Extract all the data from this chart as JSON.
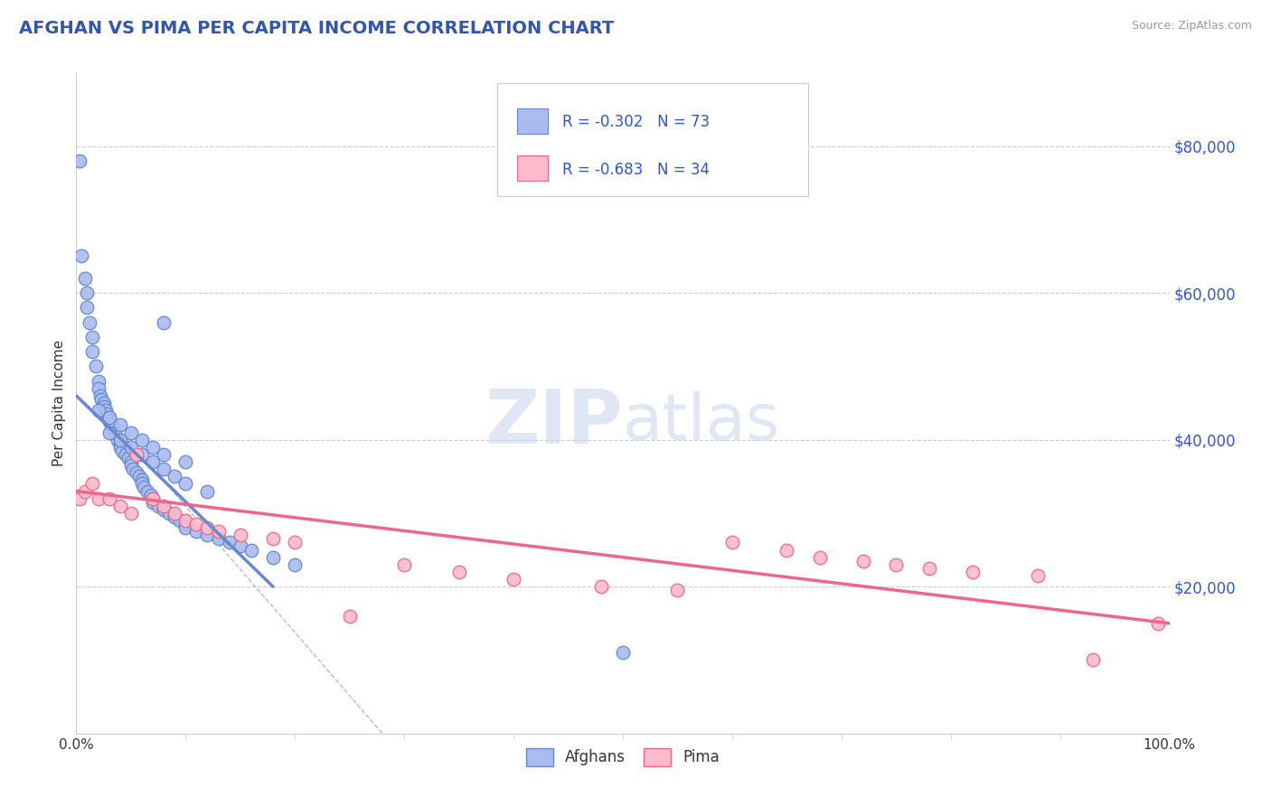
{
  "title": "AFGHAN VS PIMA PER CAPITA INCOME CORRELATION CHART",
  "title_color": "#3355aa",
  "source_text": "Source: ZipAtlas.com",
  "ylabel": "Per Capita Income",
  "xlim": [
    0,
    100
  ],
  "ylim": [
    0,
    90000
  ],
  "yticks": [
    20000,
    40000,
    60000,
    80000
  ],
  "ytick_labels": [
    "$20,000",
    "$40,000",
    "$60,000",
    "$80,000"
  ],
  "xtick_labels": [
    "0.0%",
    "100.0%"
  ],
  "grid_color": "#cccccc",
  "background_color": "#ffffff",
  "afghans_color": "#aabbee",
  "afghans_edge_color": "#6688cc",
  "pima_color": "#ffbbcc",
  "pima_edge_color": "#ee6688",
  "afghans_label": "Afghans",
  "pima_label": "Pima",
  "afghans_x": [
    0.3,
    0.5,
    0.8,
    1.0,
    1.0,
    1.2,
    1.5,
    1.5,
    1.8,
    2.0,
    2.0,
    2.2,
    2.3,
    2.5,
    2.5,
    2.7,
    2.8,
    3.0,
    3.0,
    3.2,
    3.5,
    3.8,
    4.0,
    4.0,
    4.2,
    4.5,
    4.8,
    5.0,
    5.0,
    5.2,
    5.5,
    5.8,
    6.0,
    6.0,
    6.2,
    6.5,
    6.8,
    7.0,
    7.0,
    7.5,
    8.0,
    8.5,
    9.0,
    9.5,
    10.0,
    10.0,
    11.0,
    12.0,
    13.0,
    14.0,
    15.0,
    16.0,
    18.0,
    20.0,
    3.0,
    4.0,
    5.0,
    6.0,
    7.0,
    8.0,
    9.0,
    10.0,
    12.0,
    2.0,
    3.0,
    4.0,
    5.0,
    6.0,
    7.0,
    8.0,
    10.0,
    8.0,
    50.0
  ],
  "afghans_y": [
    78000,
    65000,
    62000,
    60000,
    58000,
    56000,
    54000,
    52000,
    50000,
    48000,
    47000,
    46000,
    45500,
    45000,
    44500,
    44000,
    43500,
    43000,
    42500,
    42000,
    41000,
    40000,
    39500,
    39000,
    38500,
    38000,
    37500,
    37000,
    36500,
    36000,
    35500,
    35000,
    34500,
    34000,
    33500,
    33000,
    32500,
    32000,
    31500,
    31000,
    30500,
    30000,
    29500,
    29000,
    28500,
    28000,
    27500,
    27000,
    26500,
    26000,
    25500,
    25000,
    24000,
    23000,
    41000,
    40000,
    39000,
    38000,
    37000,
    36000,
    35000,
    34000,
    33000,
    44000,
    43000,
    42000,
    41000,
    40000,
    39000,
    38000,
    37000,
    56000,
    11000
  ],
  "pima_x": [
    0.3,
    0.8,
    1.5,
    2.0,
    3.0,
    4.0,
    5.0,
    5.5,
    7.0,
    8.0,
    9.0,
    10.0,
    11.0,
    12.0,
    13.0,
    15.0,
    18.0,
    20.0,
    25.0,
    30.0,
    35.0,
    40.0,
    48.0,
    55.0,
    60.0,
    65.0,
    68.0,
    72.0,
    75.0,
    78.0,
    82.0,
    88.0,
    93.0,
    99.0
  ],
  "pima_y": [
    32000,
    33000,
    34000,
    32000,
    32000,
    31000,
    30000,
    38000,
    32000,
    31000,
    30000,
    29000,
    28500,
    28000,
    27500,
    27000,
    26500,
    26000,
    16000,
    23000,
    22000,
    21000,
    20000,
    19500,
    26000,
    25000,
    24000,
    23500,
    23000,
    22500,
    22000,
    21500,
    10000,
    15000
  ],
  "blue_line_x": [
    0.0,
    18.0
  ],
  "blue_line_y": [
    46000,
    20000
  ],
  "pink_line_x": [
    0.0,
    100.0
  ],
  "pink_line_y": [
    33000,
    15000
  ],
  "dashed_line_x": [
    3.0,
    28.0
  ],
  "dashed_line_y": [
    43000,
    0
  ],
  "marker_size": 10,
  "line_width": 2.0,
  "legend_R1": "-0.302",
  "legend_N1": "73",
  "legend_R2": "-0.683",
  "legend_N2": "34"
}
